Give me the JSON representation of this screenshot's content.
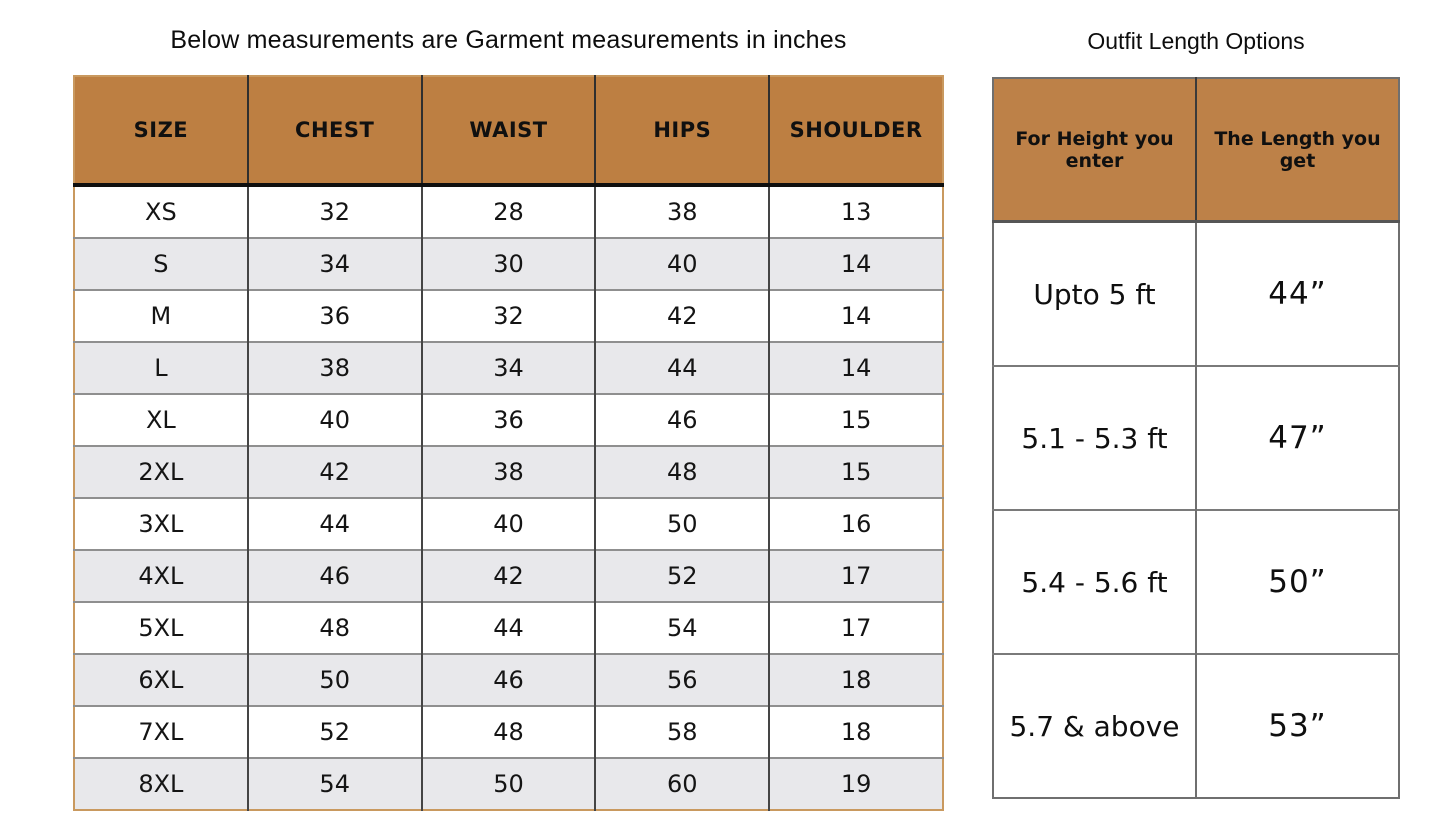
{
  "garment_table": {
    "title": "Below measurements are Garment measurements in inches",
    "columns": [
      "SIZE",
      "CHEST",
      "WAIST",
      "HIPS",
      "SHOULDER"
    ],
    "rows": [
      [
        "XS",
        "32",
        "28",
        "38",
        "13"
      ],
      [
        "S",
        "34",
        "30",
        "40",
        "14"
      ],
      [
        "M",
        "36",
        "32",
        "42",
        "14"
      ],
      [
        "L",
        "38",
        "34",
        "44",
        "14"
      ],
      [
        "XL",
        "40",
        "36",
        "46",
        "15"
      ],
      [
        "2XL",
        "42",
        "38",
        "48",
        "15"
      ],
      [
        "3XL",
        "44",
        "40",
        "50",
        "16"
      ],
      [
        "4XL",
        "46",
        "42",
        "52",
        "17"
      ],
      [
        "5XL",
        "48",
        "44",
        "54",
        "17"
      ],
      [
        "6XL",
        "50",
        "46",
        "56",
        "18"
      ],
      [
        "7XL",
        "52",
        "48",
        "58",
        "18"
      ],
      [
        "8XL",
        "54",
        "50",
        "60",
        "19"
      ]
    ]
  },
  "length_table": {
    "title": "Outfit Length Options",
    "columns": [
      "For Height you enter",
      "The Length you get"
    ],
    "rows": [
      [
        "Upto 5 ft",
        "44”"
      ],
      [
        "5.1 - 5.3 ft",
        "47”"
      ],
      [
        "5.4 - 5.6 ft",
        "50”"
      ],
      [
        "5.7 & above",
        "53”"
      ]
    ]
  },
  "colors": {
    "header_brown": "#bd7f42",
    "alt_row_gray": "#e8e8eb",
    "outer_border_tan": "#c9995f",
    "grid_dark": "#454545",
    "grid_gray": "#8f8f8f",
    "background": "#ffffff"
  }
}
